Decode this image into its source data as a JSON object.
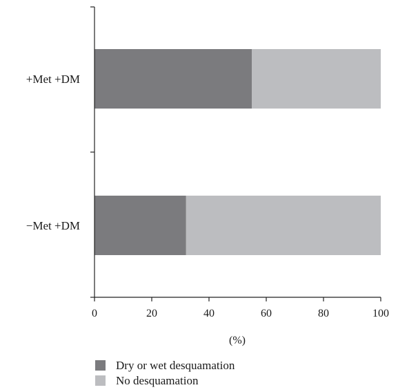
{
  "chart_data": {
    "type": "bar",
    "orientation": "horizontal",
    "stacked": true,
    "categories": [
      "+Met +DM",
      "−Met +DM"
    ],
    "series": [
      {
        "name": "Dry or wet desquamation",
        "values": [
          55,
          32
        ],
        "color": "#7b7b7e"
      },
      {
        "name": "No desquamation",
        "values": [
          45,
          68
        ],
        "color": "#bcbdc0"
      }
    ],
    "xlabel": "(%)",
    "ylabel": "",
    "xlim": [
      0,
      100
    ],
    "xticks": [
      "0",
      "20",
      "40",
      "60",
      "80",
      "100"
    ],
    "grid": false,
    "legend_position": "bottom"
  }
}
